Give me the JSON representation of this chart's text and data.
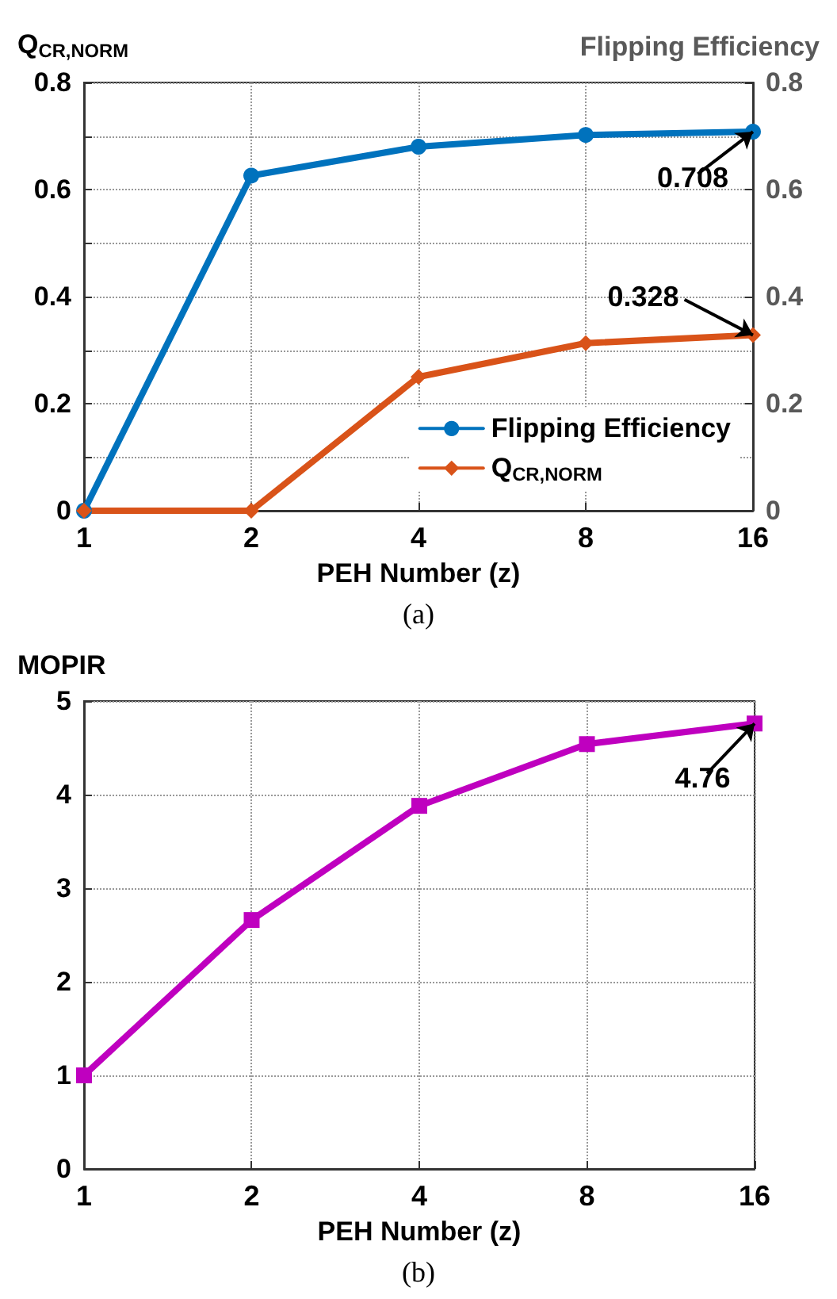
{
  "chart_data": [
    {
      "type": "line",
      "categories": [
        "1",
        "2",
        "4",
        "8",
        "16"
      ],
      "xlabel": "PEH Number (z)",
      "ylabel": "Q$_{CR,NORM}$",
      "y2label": "Flipping Efficiency",
      "ylim": [
        0,
        0.8
      ],
      "yticks": [
        0,
        {
          "value": 0.1,
          "label": null
        },
        0.2,
        {
          "value": 0.3,
          "label": null
        },
        0.4,
        {
          "value": 0.5,
          "label": null
        },
        0.6,
        {
          "value": 0.7,
          "label": null
        },
        0.8
      ],
      "y2lim": [
        0,
        0.8
      ],
      "y2ticks": [
        0,
        0.2,
        0.4,
        0.6,
        0.8
      ],
      "grid": true,
      "legend": "bottom right",
      "series": [
        {
          "name": "Flipping Efficiency",
          "color": "#0072bd",
          "axis": "y2",
          "marker": "circle",
          "values": [
            0,
            0.626,
            0.68,
            0.702,
            0.708
          ]
        },
        {
          "name": "Q$_{CR,NORM}$",
          "color": "#d95319",
          "marker": "diamond",
          "values": [
            0,
            0,
            0.25,
            0.313,
            0.328
          ]
        }
      ],
      "annotations": [
        {
          "text": "0.708",
          "x": "16",
          "y": 0.708
        },
        {
          "text": "0.328",
          "x": "16",
          "y": 0.328
        },
        "(a)"
      ]
    },
    {
      "type": "line",
      "categories": [
        "1",
        "2",
        "4",
        "8",
        "16"
      ],
      "xlabel": "PEH Number (z)",
      "ylabel": "MOPIR",
      "ylim": [
        0,
        5
      ],
      "yticks": [
        0,
        1,
        2,
        3,
        4,
        5
      ],
      "grid": true,
      "series": [
        {
          "color": "#bf00bf",
          "marker": "square",
          "values": [
            1,
            2.66,
            3.88,
            4.54,
            4.76
          ]
        }
      ],
      "annotations": [
        {
          "text": "4.76",
          "x": "16",
          "y": 4.76
        },
        "(b)"
      ]
    }
  ]
}
